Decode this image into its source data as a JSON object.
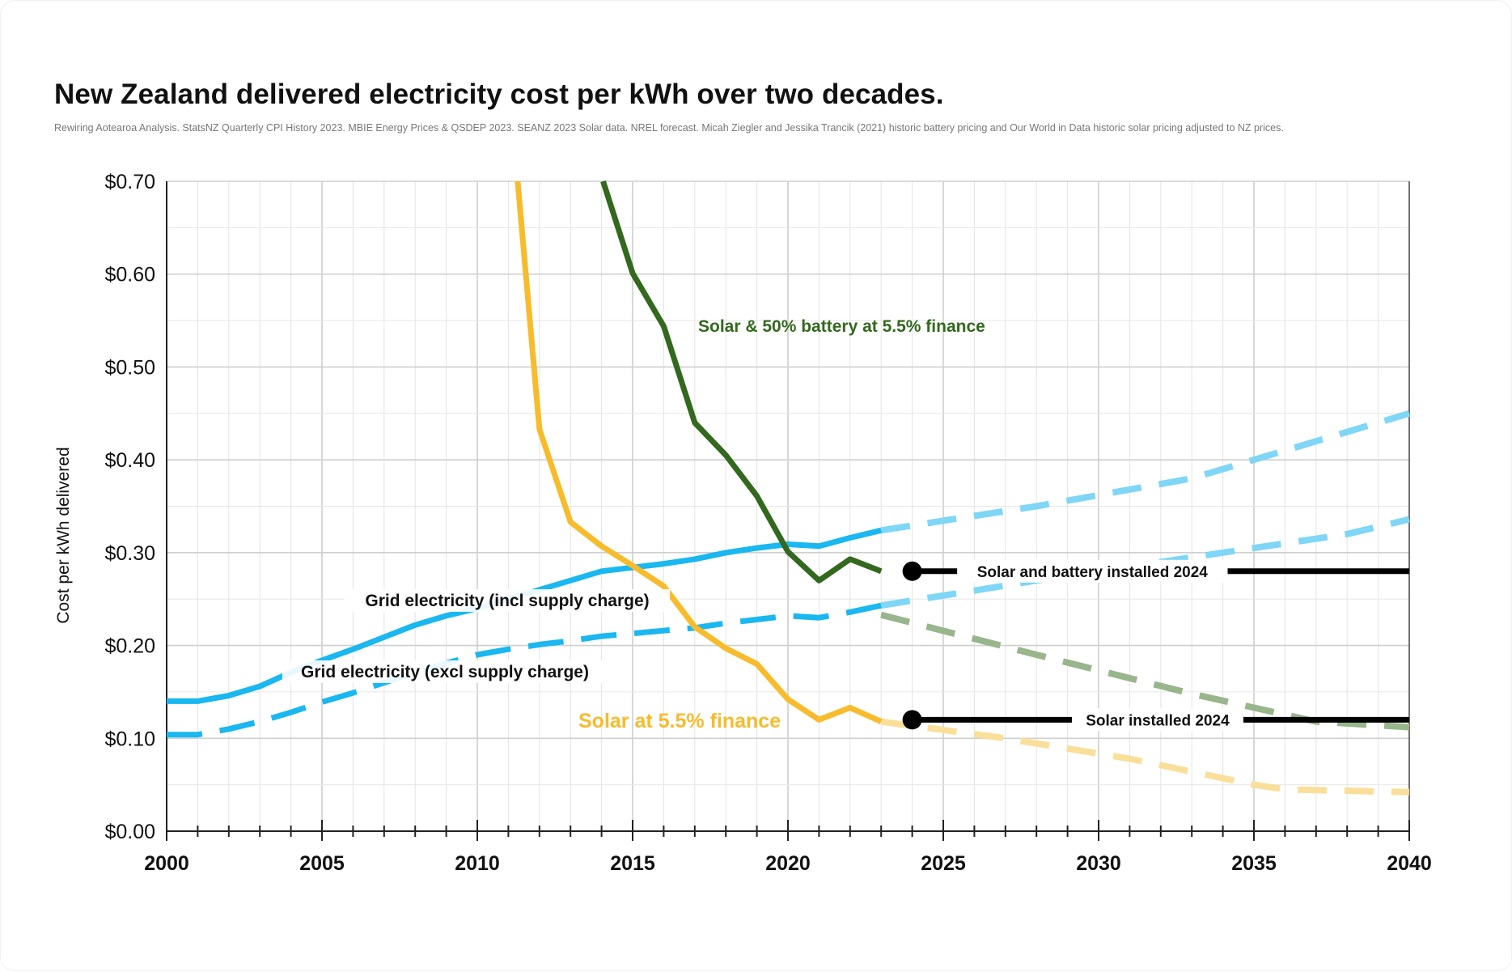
{
  "chart_data": {
    "type": "line",
    "title": "New Zealand delivered electricity cost per kWh over two decades.",
    "subtitle": "Rewiring Aotearoa Analysis. StatsNZ Quarterly CPI History 2023. MBIE Energy Prices & QSDEP 2023. SEANZ 2023 Solar data. NREL forecast. Micah Ziegler and Jessika Trancik (2021) historic battery pricing and Our World in Data historic solar pricing adjusted to NZ prices.",
    "xlabel": "",
    "ylabel": "Cost per kWh delivered",
    "xlim": [
      2000,
      2040
    ],
    "ylim": [
      0,
      0.7
    ],
    "x_ticks": [
      "2000",
      "2005",
      "2010",
      "2015",
      "2020",
      "2025",
      "2030",
      "2035",
      "2040"
    ],
    "y_ticks": [
      "$0.00",
      "$0.10",
      "$0.20",
      "$0.30",
      "$0.40",
      "$0.50",
      "$0.60",
      "$0.70"
    ],
    "grid": true,
    "series": [
      {
        "name": "Grid electricity (incl supply charge)",
        "color": "#1ab7f0",
        "historic": [
          [
            2000,
            0.14
          ],
          [
            2001,
            0.14
          ],
          [
            2002,
            0.146
          ],
          [
            2003,
            0.156
          ],
          [
            2004,
            0.171
          ],
          [
            2005,
            0.184
          ],
          [
            2006,
            0.196
          ],
          [
            2007,
            0.209
          ],
          [
            2008,
            0.222
          ],
          [
            2009,
            0.232
          ],
          [
            2010,
            0.24
          ],
          [
            2011,
            0.25
          ],
          [
            2012,
            0.26
          ],
          [
            2013,
            0.27
          ],
          [
            2014,
            0.28
          ],
          [
            2015,
            0.284
          ],
          [
            2016,
            0.288
          ],
          [
            2017,
            0.293
          ],
          [
            2018,
            0.3
          ],
          [
            2019,
            0.305
          ],
          [
            2020,
            0.309
          ],
          [
            2021,
            0.307
          ],
          [
            2022,
            0.316
          ],
          [
            2023,
            0.324
          ]
        ],
        "forecast": [
          [
            2023,
            0.324
          ],
          [
            2028,
            0.35
          ],
          [
            2033,
            0.38
          ],
          [
            2038,
            0.43
          ],
          [
            2040,
            0.45
          ]
        ]
      },
      {
        "name": "Grid electricity (excl supply charge)",
        "color": "#1ab7f0",
        "historic": [
          [
            2000,
            0.104
          ],
          [
            2001,
            0.104
          ],
          [
            2002,
            0.11
          ],
          [
            2003,
            0.118
          ],
          [
            2004,
            0.128
          ],
          [
            2005,
            0.139
          ],
          [
            2006,
            0.149
          ],
          [
            2007,
            0.16
          ],
          [
            2008,
            0.171
          ],
          [
            2009,
            0.181
          ],
          [
            2010,
            0.19
          ],
          [
            2011,
            0.196
          ],
          [
            2012,
            0.201
          ],
          [
            2013,
            0.205
          ],
          [
            2014,
            0.21
          ],
          [
            2015,
            0.213
          ],
          [
            2016,
            0.216
          ],
          [
            2017,
            0.219
          ],
          [
            2018,
            0.224
          ],
          [
            2019,
            0.228
          ],
          [
            2020,
            0.232
          ],
          [
            2021,
            0.23
          ],
          [
            2022,
            0.236
          ],
          [
            2023,
            0.243
          ]
        ],
        "forecast": [
          [
            2023,
            0.243
          ],
          [
            2028,
            0.27
          ],
          [
            2033,
            0.295
          ],
          [
            2038,
            0.32
          ],
          [
            2040,
            0.336
          ]
        ]
      },
      {
        "name": "Solar at 5.5% finance",
        "color": "#f7bb2c",
        "historic": [
          [
            2011.3,
            0.7
          ],
          [
            2012,
            0.433
          ],
          [
            2013,
            0.333
          ],
          [
            2014,
            0.307
          ],
          [
            2015,
            0.286
          ],
          [
            2016,
            0.264
          ],
          [
            2017,
            0.22
          ],
          [
            2018,
            0.197
          ],
          [
            2019,
            0.18
          ],
          [
            2020,
            0.142
          ],
          [
            2021,
            0.12
          ],
          [
            2022,
            0.133
          ],
          [
            2023,
            0.118
          ]
        ],
        "forecast": [
          [
            2023,
            0.118
          ],
          [
            2027,
            0.1
          ],
          [
            2031,
            0.078
          ],
          [
            2035,
            0.05
          ],
          [
            2036,
            0.045
          ],
          [
            2040,
            0.042
          ]
        ]
      },
      {
        "name": "Solar & 50% battery at 5.5% finance",
        "color": "#33691e",
        "historic": [
          [
            2014.05,
            0.7
          ],
          [
            2015,
            0.601
          ],
          [
            2016,
            0.544
          ],
          [
            2017,
            0.44
          ],
          [
            2018,
            0.405
          ],
          [
            2019,
            0.361
          ],
          [
            2020,
            0.301
          ],
          [
            2021,
            0.27
          ],
          [
            2022,
            0.293
          ],
          [
            2023,
            0.28
          ]
        ],
        "forecast": [
          [
            2023,
            0.233
          ],
          [
            2028,
            0.19
          ],
          [
            2033,
            0.148
          ],
          [
            2037,
            0.118
          ],
          [
            2040,
            0.112
          ]
        ]
      }
    ],
    "reference_lines": [
      {
        "label": "Solar and battery installed 2024",
        "x_start": 2024,
        "x_end": 2040,
        "y": 0.28
      },
      {
        "label": "Solar installed 2024",
        "x_start": 2024,
        "x_end": 2040,
        "y": 0.12
      }
    ],
    "annotations": [
      {
        "text": "Solar & 50% battery at 5.5% finance",
        "color": "#33691e"
      },
      {
        "text": "Grid electricity (incl supply charge)",
        "color": "#111111"
      },
      {
        "text": "Grid electricity (excl supply charge)",
        "color": "#111111"
      },
      {
        "text": "Solar at 5.5% finance",
        "color": "#f7bb2c"
      }
    ]
  }
}
